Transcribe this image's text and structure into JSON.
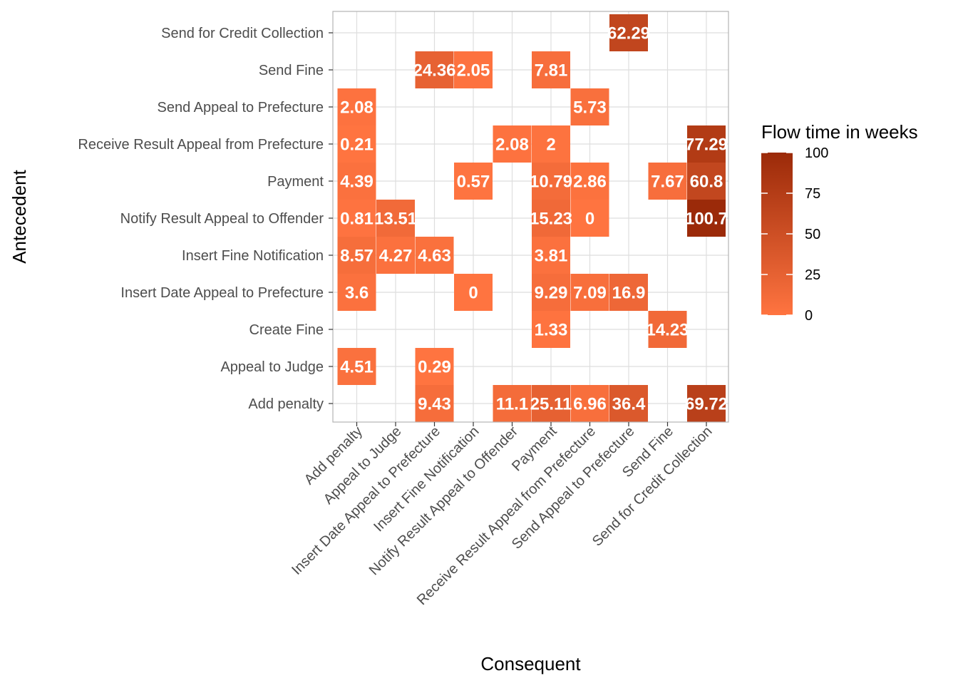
{
  "chart_data": {
    "type": "heatmap",
    "title": "",
    "xlabel": "Consequent",
    "ylabel": "Antecedent",
    "x_categories": [
      "Add penalty",
      "Appeal to Judge",
      "Insert Date Appeal to Prefecture",
      "Insert Fine Notification",
      "Notify Result Appeal to Offender",
      "Payment",
      "Receive Result Appeal from Prefecture",
      "Send Appeal to Prefecture",
      "Send Fine",
      "Send for Credit Collection"
    ],
    "y_categories": [
      "Add penalty",
      "Appeal to Judge",
      "Create Fine",
      "Insert Date Appeal to Prefecture",
      "Insert Fine Notification",
      "Notify Result Appeal to Offender",
      "Payment",
      "Receive Result Appeal from Prefecture",
      "Send Appeal to Prefecture",
      "Send Fine",
      "Send for Credit Collection"
    ],
    "cells": [
      {
        "antecedent": "Send for Credit Collection",
        "consequent": "Send Appeal to Prefecture",
        "value": 62.29,
        "label": "62.29"
      },
      {
        "antecedent": "Send Fine",
        "consequent": "Insert Date Appeal to Prefecture",
        "value": 24.36,
        "label": "24.36"
      },
      {
        "antecedent": "Send Fine",
        "consequent": "Insert Fine Notification",
        "value": 2.05,
        "label": "2.05"
      },
      {
        "antecedent": "Send Fine",
        "consequent": "Payment",
        "value": 7.81,
        "label": "7.81"
      },
      {
        "antecedent": "Send Appeal to Prefecture",
        "consequent": "Add penalty",
        "value": 2.08,
        "label": "2.08"
      },
      {
        "antecedent": "Send Appeal to Prefecture",
        "consequent": "Receive Result Appeal from Prefecture",
        "value": 5.73,
        "label": "5.73"
      },
      {
        "antecedent": "Receive Result Appeal from Prefecture",
        "consequent": "Add penalty",
        "value": 0.21,
        "label": "0.21"
      },
      {
        "antecedent": "Receive Result Appeal from Prefecture",
        "consequent": "Notify Result Appeal to Offender",
        "value": 2.08,
        "label": "2.08"
      },
      {
        "antecedent": "Receive Result Appeal from Prefecture",
        "consequent": "Payment",
        "value": 2,
        "label": "2"
      },
      {
        "antecedent": "Receive Result Appeal from Prefecture",
        "consequent": "Send for Credit Collection",
        "value": 77.29,
        "label": "77.29"
      },
      {
        "antecedent": "Payment",
        "consequent": "Add penalty",
        "value": 4.39,
        "label": "4.39"
      },
      {
        "antecedent": "Payment",
        "consequent": "Insert Fine Notification",
        "value": 0.57,
        "label": "0.57"
      },
      {
        "antecedent": "Payment",
        "consequent": "Payment",
        "value": 10.79,
        "label": "10.79"
      },
      {
        "antecedent": "Payment",
        "consequent": "Receive Result Appeal from Prefecture",
        "value": 2.86,
        "label": "2.86"
      },
      {
        "antecedent": "Payment",
        "consequent": "Send Fine",
        "value": 7.67,
        "label": "7.67"
      },
      {
        "antecedent": "Payment",
        "consequent": "Send for Credit Collection",
        "value": 60.8,
        "label": "60.8"
      },
      {
        "antecedent": "Notify Result Appeal to Offender",
        "consequent": "Add penalty",
        "value": 0.81,
        "label": "0.81"
      },
      {
        "antecedent": "Notify Result Appeal to Offender",
        "consequent": "Appeal to Judge",
        "value": 13.51,
        "label": "13.51"
      },
      {
        "antecedent": "Notify Result Appeal to Offender",
        "consequent": "Payment",
        "value": 15.23,
        "label": "15.23"
      },
      {
        "antecedent": "Notify Result Appeal to Offender",
        "consequent": "Receive Result Appeal from Prefecture",
        "value": 0,
        "label": "0"
      },
      {
        "antecedent": "Notify Result Appeal to Offender",
        "consequent": "Send for Credit Collection",
        "value": 100.7,
        "label": "100.7"
      },
      {
        "antecedent": "Insert Fine Notification",
        "consequent": "Add penalty",
        "value": 8.57,
        "label": "8.57"
      },
      {
        "antecedent": "Insert Fine Notification",
        "consequent": "Appeal to Judge",
        "value": 4.27,
        "label": "4.27"
      },
      {
        "antecedent": "Insert Fine Notification",
        "consequent": "Insert Date Appeal to Prefecture",
        "value": 4.63,
        "label": "4.63"
      },
      {
        "antecedent": "Insert Fine Notification",
        "consequent": "Payment",
        "value": 3.81,
        "label": "3.81"
      },
      {
        "antecedent": "Insert Date Appeal to Prefecture",
        "consequent": "Add penalty",
        "value": 3.6,
        "label": "3.6"
      },
      {
        "antecedent": "Insert Date Appeal to Prefecture",
        "consequent": "Insert Fine Notification",
        "value": 0,
        "label": "0"
      },
      {
        "antecedent": "Insert Date Appeal to Prefecture",
        "consequent": "Payment",
        "value": 9.29,
        "label": "9.29"
      },
      {
        "antecedent": "Insert Date Appeal to Prefecture",
        "consequent": "Receive Result Appeal from Prefecture",
        "value": 7.09,
        "label": "7.09"
      },
      {
        "antecedent": "Insert Date Appeal to Prefecture",
        "consequent": "Send Appeal to Prefecture",
        "value": 16.9,
        "label": "16.9"
      },
      {
        "antecedent": "Create Fine",
        "consequent": "Payment",
        "value": 1.33,
        "label": "1.33"
      },
      {
        "antecedent": "Create Fine",
        "consequent": "Send Fine",
        "value": 14.23,
        "label": "14.23"
      },
      {
        "antecedent": "Appeal to Judge",
        "consequent": "Add penalty",
        "value": 4.51,
        "label": "4.51"
      },
      {
        "antecedent": "Appeal to Judge",
        "consequent": "Insert Date Appeal to Prefecture",
        "value": 0.29,
        "label": "0.29"
      },
      {
        "antecedent": "Add penalty",
        "consequent": "Insert Date Appeal to Prefecture",
        "value": 9.43,
        "label": "9.43"
      },
      {
        "antecedent": "Add penalty",
        "consequent": "Notify Result Appeal to Offender",
        "value": 11.1,
        "label": "11.1"
      },
      {
        "antecedent": "Add penalty",
        "consequent": "Payment",
        "value": 25.11,
        "label": "25.11"
      },
      {
        "antecedent": "Add penalty",
        "consequent": "Receive Result Appeal from Prefecture",
        "value": 6.96,
        "label": "6.96"
      },
      {
        "antecedent": "Add penalty",
        "consequent": "Send Appeal to Prefecture",
        "value": 36.4,
        "label": "36.4"
      },
      {
        "antecedent": "Add penalty",
        "consequent": "Send for Credit Collection",
        "value": 69.72,
        "label": "69.72"
      }
    ],
    "legend": {
      "title": "Flow time in weeks",
      "ticks": [
        0,
        25,
        50,
        75,
        100
      ],
      "range": [
        0,
        100
      ],
      "color_low": "#ff7440",
      "color_high": "#9b2a09",
      "placement": "right"
    },
    "grid": true
  }
}
